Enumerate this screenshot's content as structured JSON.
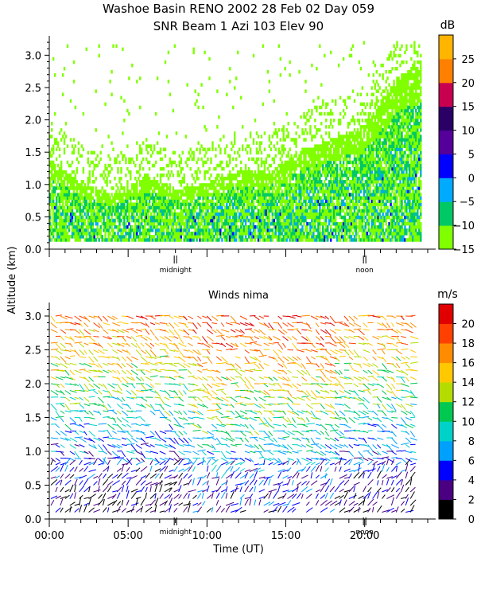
{
  "header": {
    "title_line1": "Washoe Basin RENO 2002  28 Feb 02 Day 059",
    "title_line2": "SNR Beam 1 Azi 103 Elev 90"
  },
  "chart_data": [
    {
      "type": "heatmap",
      "title": "SNR Beam 1 Azi 103 Elev 90",
      "ylabel": "Altitude (km)",
      "ylim": [
        0.0,
        3.3
      ],
      "yticks": [
        "0.0",
        "0.5",
        "1.0",
        "1.5",
        "2.0",
        "2.5",
        "3.0"
      ],
      "x_markers": [
        {
          "label": "midnight",
          "hour": 8
        },
        {
          "label": "noon",
          "hour": 20
        }
      ],
      "colorbar": {
        "unit": "dB",
        "ticks": [
          "25",
          "20",
          "15",
          "10",
          "5",
          "0",
          "−5",
          "−10",
          "−15"
        ],
        "range": [
          -15,
          30
        ],
        "colors": [
          "#80ff00",
          "#00c864",
          "#00aaff",
          "#0000ff",
          "#55009a",
          "#2a0066",
          "#c80050",
          "#ff7f00",
          "#ffb400"
        ]
      },
      "layer_profile": [
        {
          "hour": 0,
          "top_km": 1.35
        },
        {
          "hour": 2,
          "top_km": 1.0
        },
        {
          "hour": 4,
          "top_km": 0.8
        },
        {
          "hour": 6,
          "top_km": 1.1
        },
        {
          "hour": 8,
          "top_km": 0.9
        },
        {
          "hour": 10,
          "top_km": 1.0
        },
        {
          "hour": 12,
          "top_km": 1.2
        },
        {
          "hour": 14,
          "top_km": 1.2
        },
        {
          "hour": 16,
          "top_km": 1.5
        },
        {
          "hour": 18,
          "top_km": 1.7
        },
        {
          "hour": 20,
          "top_km": 1.9
        },
        {
          "hour": 22,
          "top_km": 2.6
        },
        {
          "hour": 23,
          "top_km": 2.8
        }
      ]
    },
    {
      "type": "scatter",
      "title": "Winds nima",
      "ylabel": "Altitude (km)",
      "xlabel": "Time (UT)",
      "ylim": [
        0.0,
        3.2
      ],
      "xlim": [
        0,
        24
      ],
      "yticks": [
        "0.0",
        "0.5",
        "1.0",
        "1.5",
        "2.0",
        "2.5",
        "3.0"
      ],
      "xticks": [
        "00:00",
        "05:00",
        "10:00",
        "15:00",
        "20:00"
      ],
      "x_markers": [
        {
          "label": "midnight",
          "hour": 8
        },
        {
          "label": "noon",
          "hour": 20
        }
      ],
      "colorbar": {
        "unit": "m/s",
        "ticks": [
          "20",
          "18",
          "16",
          "14",
          "12",
          "10",
          "8",
          "6",
          "4",
          "2",
          "0"
        ],
        "range": [
          0,
          22
        ],
        "colors": [
          "#000000",
          "#4b0082",
          "#0000ff",
          "#00a0ff",
          "#00d2c8",
          "#00c850",
          "#b4dc00",
          "#ffc800",
          "#ff8c00",
          "#ff4000",
          "#e00000"
        ]
      },
      "speed_profile": [
        {
          "alt_km": 0.1,
          "speed": 2
        },
        {
          "alt_km": 0.5,
          "speed": 3
        },
        {
          "alt_km": 1.0,
          "speed": 6
        },
        {
          "alt_km": 1.5,
          "speed": 9
        },
        {
          "alt_km": 2.0,
          "speed": 12
        },
        {
          "alt_km": 2.5,
          "speed": 15
        },
        {
          "alt_km": 3.0,
          "speed": 18
        }
      ]
    }
  ]
}
